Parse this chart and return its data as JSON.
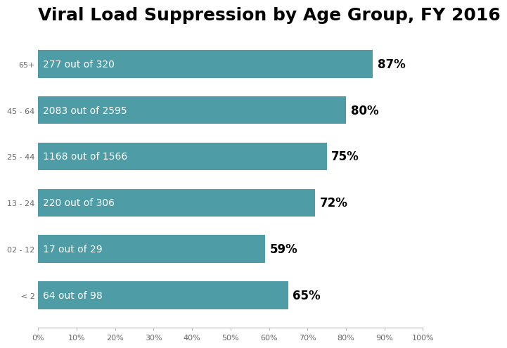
{
  "title": "Viral Load Suppression by Age Group, FY 2016",
  "categories": [
    "65+",
    "45 - 64",
    "25 - 44",
    "13 - 24",
    "02 - 12",
    "< 2"
  ],
  "values": [
    87,
    80,
    75,
    72,
    59,
    65
  ],
  "bar_labels": [
    "277 out of 320",
    "2083 out of 2595",
    "1168 out of 1566",
    "220 out of 306",
    "17 out of 29",
    "64 out of 98"
  ],
  "pct_labels": [
    "87%",
    "80%",
    "75%",
    "72%",
    "59%",
    "65%"
  ],
  "bar_color": "#4e9da6",
  "bar_label_color": "#ffffff",
  "pct_label_color": "#000000",
  "title_fontsize": 18,
  "bar_label_fontsize": 10,
  "pct_label_fontsize": 12,
  "tick_label_fontsize": 8,
  "ytick_fontsize": 8,
  "xlim": [
    0,
    100
  ],
  "background_color": "#ffffff"
}
